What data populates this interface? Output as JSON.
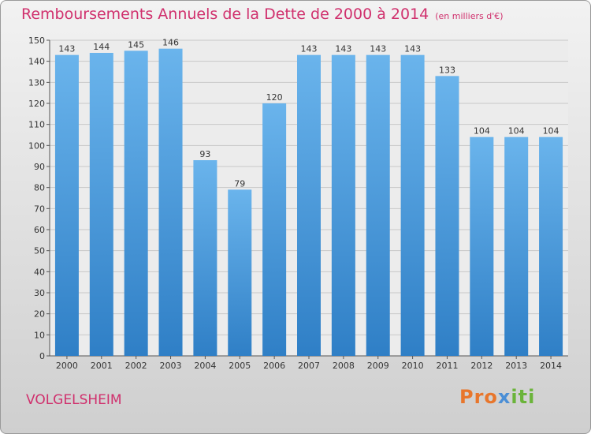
{
  "title": "Remboursements Annuels de la Dette de 2000 à 2014",
  "unit": "(en milliers d'€)",
  "commune": "VOLGELSHEIM",
  "logo": "Proxiti",
  "colors": {
    "bar_top": "#6ab4ec",
    "bar_bottom": "#2f7fc6",
    "title": "#d0306d"
  },
  "chart_data": {
    "type": "bar",
    "categories": [
      "2000",
      "2001",
      "2002",
      "2003",
      "2004",
      "2005",
      "2006",
      "2007",
      "2008",
      "2009",
      "2010",
      "2011",
      "2012",
      "2013",
      "2014"
    ],
    "values": [
      143,
      144,
      145,
      146,
      93,
      79,
      120,
      143,
      143,
      143,
      143,
      133,
      104,
      104,
      104
    ],
    "ylim": [
      0,
      150
    ],
    "yticks": [
      0,
      10,
      20,
      30,
      40,
      50,
      60,
      70,
      80,
      90,
      100,
      110,
      120,
      130,
      140,
      150
    ],
    "grid": true,
    "data_labels": true
  }
}
